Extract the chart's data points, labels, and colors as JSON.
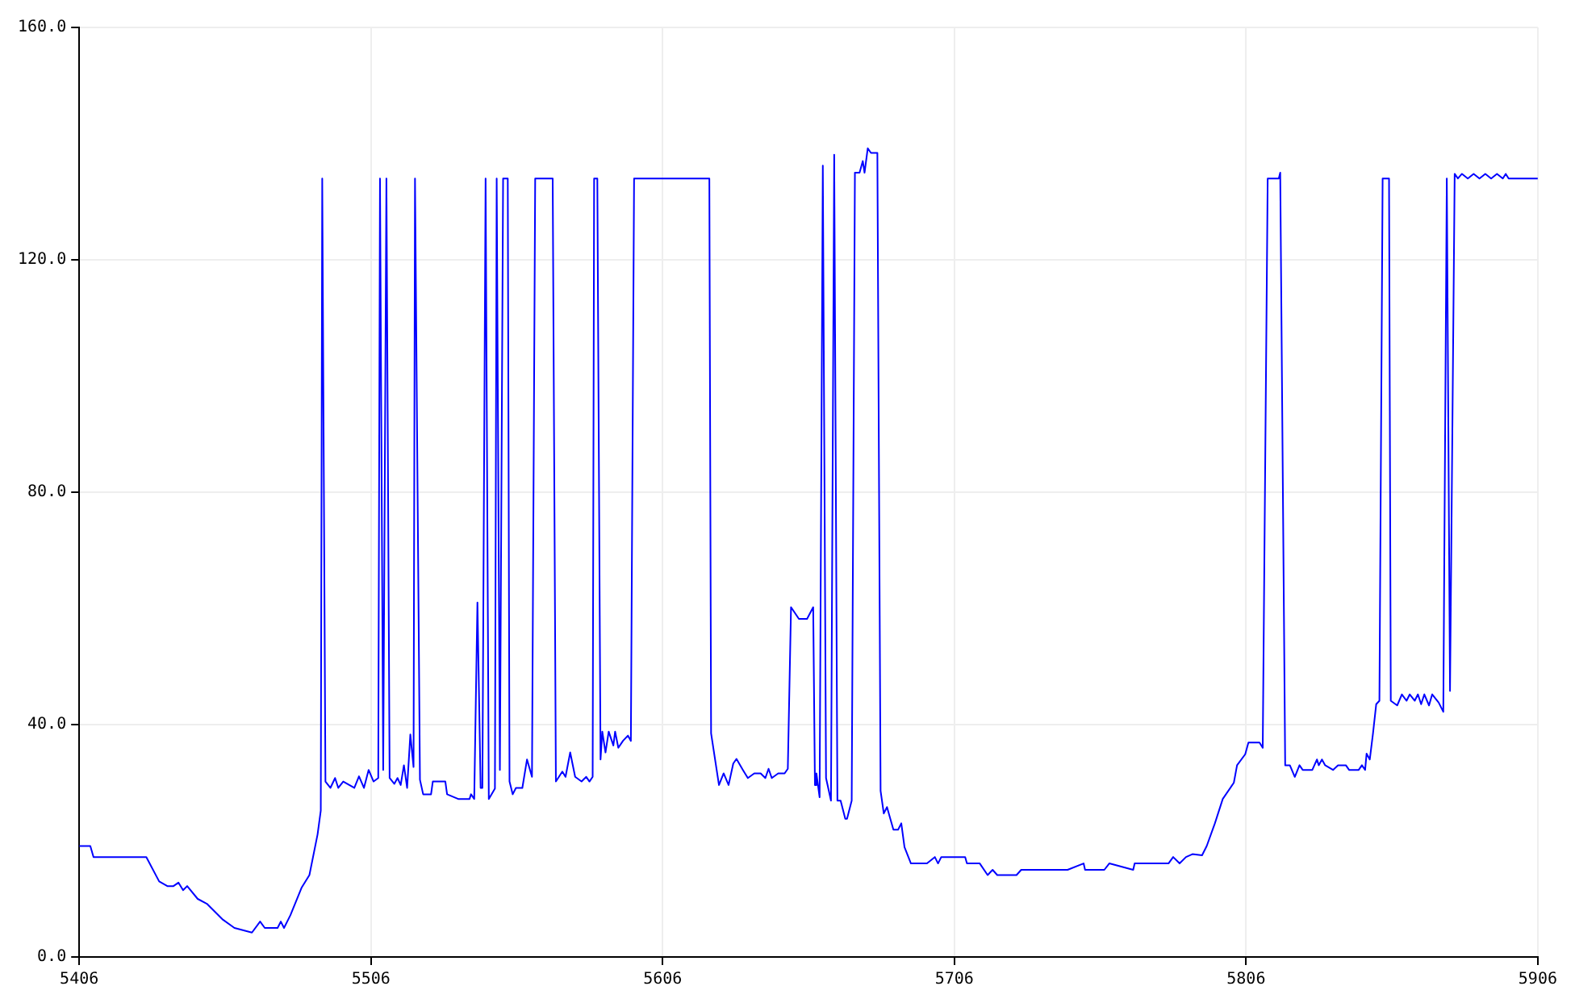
{
  "chart_data": {
    "type": "line",
    "xlim": [
      5406,
      5906
    ],
    "xticks": [
      5406,
      5506,
      5606,
      5706,
      5806,
      5906
    ],
    "ylim": [
      0,
      160
    ],
    "yticks": [
      {
        "value": 0,
        "label": "0.0"
      },
      {
        "value": 40,
        "label": "40.0"
      },
      {
        "value": 80,
        "label": "80.0"
      },
      {
        "value": 120,
        "label": "120.0"
      },
      {
        "value": 160,
        "label": "160.0"
      }
    ],
    "grid": true,
    "marker": "none",
    "line_style": "solid",
    "series": [
      {
        "color": "#0000ff",
        "x": [
          5406,
          5409.8,
          5410.9,
          5429.0,
          5433.4,
          5436.2,
          5438.3,
          5440.0,
          5441.6,
          5443.0,
          5446.6,
          5449.9,
          5455.3,
          5459.2,
          5465.2,
          5468.0,
          5469.6,
          5474.0,
          5475.1,
          5476.2,
          5478.4,
          5482.2,
          5484.9,
          5487.7,
          5488.8,
          5489.3,
          5490.4,
          5492.1,
          5493.7,
          5494.8,
          5496.5,
          5500.3,
          5501.9,
          5503.6,
          5505.2,
          5506.9,
          5508.5,
          5509.1,
          5510.2,
          5511.3,
          5512.4,
          5514.0,
          5515.1,
          5516.2,
          5517.3,
          5518.4,
          5519.5,
          5520.6,
          5521.1,
          5522.8,
          5523.9,
          5526.6,
          5527.2,
          5531.5,
          5532.1,
          5535.9,
          5539.8,
          5540.3,
          5541.4,
          5542.5,
          5543.6,
          5544.2,
          5545.3,
          5546.4,
          5548.5,
          5549.1,
          5550.2,
          5551.3,
          5552.9,
          5553.5,
          5554.6,
          5555.7,
          5557.9,
          5559.5,
          5561.2,
          5562.3,
          5568.3,
          5569.4,
          5571.6,
          5572.7,
          5574.3,
          5576.0,
          5578.2,
          5579.8,
          5580.9,
          5582.0,
          5582.5,
          5583.6,
          5584.7,
          5585.3,
          5586.4,
          5587.5,
          5589.1,
          5589.7,
          5590.8,
          5592.4,
          5594.1,
          5595.1,
          5596.2,
          5622.0,
          5622.6,
          5625.3,
          5626.9,
          5628.6,
          5630.2,
          5631.3,
          5633.5,
          5635.2,
          5637.4,
          5639.6,
          5641.2,
          5642.3,
          5643.4,
          5645.6,
          5647.8,
          5648.9,
          5650.0,
          5652.7,
          5655.5,
          5657.6,
          5658.2,
          5658.7,
          5659.8,
          5660.9,
          5662.0,
          5663.7,
          5664.8,
          5665.9,
          5667.0,
          5668.6,
          5669.2,
          5670.8,
          5671.9,
          5673.5,
          5674.6,
          5675.2,
          5676.3,
          5677.4,
          5679.6,
          5680.7,
          5681.8,
          5682.9,
          5685.1,
          5686.7,
          5687.8,
          5688.9,
          5691.1,
          5696.6,
          5699.3,
          5700.4,
          5701.5,
          5709.7,
          5710.3,
          5714.7,
          5717.4,
          5719.1,
          5720.7,
          5727.3,
          5728.9,
          5736.0,
          5744.8,
          5750.3,
          5750.8,
          5757.4,
          5759.1,
          5767.3,
          5767.8,
          5779.4,
          5781.0,
          5783.2,
          5785.4,
          5787.6,
          5790.9,
          5792.5,
          5795.3,
          5798.0,
          5801.8,
          5802.9,
          5805.7,
          5806.8,
          5810.6,
          5811.7,
          5813.4,
          5817.2,
          5817.7,
          5819.4,
          5821.0,
          5822.7,
          5824.3,
          5825.4,
          5828.7,
          5830.3,
          5830.9,
          5832.0,
          5833.1,
          5835.8,
          5837.5,
          5840.2,
          5841.3,
          5844.6,
          5845.7,
          5846.8,
          5847.3,
          5848.4,
          5849.5,
          5850.6,
          5851.7,
          5852.8,
          5855.0,
          5855.6,
          5857.8,
          5859.4,
          5861.0,
          5862.1,
          5863.8,
          5864.9,
          5866.0,
          5867.1,
          5868.7,
          5869.8,
          5872.0,
          5873.6,
          5874.8,
          5875.9,
          5877.5,
          5878.6,
          5880,
          5882,
          5884,
          5886,
          5888,
          5890,
          5892,
          5894,
          5895,
          5896,
          5906
        ],
        "values": [
          19.1,
          19.1,
          17.2,
          17.2,
          13.0,
          12.2,
          12.2,
          12.8,
          11.5,
          12.2,
          10.0,
          9.1,
          6.4,
          5.0,
          4.2,
          6.1,
          5.0,
          5.0,
          6.1,
          5.0,
          7.2,
          11.9,
          14.1,
          21.1,
          25.2,
          134,
          30.2,
          29.1,
          30.8,
          29.1,
          30.2,
          29.1,
          31.1,
          29.1,
          32.2,
          30.2,
          30.8,
          134,
          32.2,
          134,
          30.8,
          29.8,
          30.8,
          29.6,
          33.0,
          29.1,
          38.3,
          32.7,
          134,
          30.5,
          28.0,
          28.0,
          30.2,
          30.2,
          28.0,
          27.2,
          27.2,
          28.0,
          27.2,
          61,
          29.1,
          29.1,
          134,
          27.2,
          29.0,
          134,
          32.2,
          134,
          134,
          30.2,
          28.0,
          29.1,
          29.1,
          34.0,
          31.0,
          134,
          134,
          30.2,
          31.9,
          31.0,
          35.2,
          31.0,
          30.2,
          31.0,
          30.2,
          31.0,
          134,
          134,
          34.0,
          38.8,
          35.2,
          38.8,
          36.4,
          38.8,
          36.0,
          37.2,
          38.1,
          37.2,
          134,
          134,
          38.5,
          29.6,
          31.6,
          29.6,
          33.3,
          34.1,
          32.2,
          30.8,
          31.6,
          31.6,
          30.8,
          32.4,
          30.8,
          31.6,
          31.6,
          32.4,
          60.2,
          58.2,
          58.2,
          60.2,
          29.6,
          31.6,
          27.5,
          136.2,
          30.8,
          26.9,
          138.1,
          26.9,
          26.9,
          23.8,
          23.8,
          26.9,
          135,
          135,
          137,
          135,
          139.2,
          138.4,
          138.4,
          28.6,
          24.7,
          25.8,
          21.9,
          21.9,
          23.0,
          18.9,
          16.1,
          16.1,
          17.2,
          16.1,
          17.2,
          17.2,
          16.1,
          16.1,
          14.1,
          15.0,
          14.1,
          14.1,
          15.0,
          15.0,
          15.0,
          16.1,
          15.0,
          15.0,
          16.1,
          15.0,
          16.1,
          16.1,
          17.2,
          16.1,
          17.2,
          17.7,
          17.5,
          19.1,
          23.0,
          27.2,
          30.0,
          33.0,
          34.9,
          36.9,
          36.9,
          36.0,
          134,
          134,
          135,
          33.0,
          33.0,
          31.0,
          33.0,
          32.2,
          32.2,
          34.0,
          33.0,
          34.0,
          33.0,
          32.2,
          33.0,
          33.0,
          32.2,
          32.2,
          33.0,
          32.2,
          35.0,
          34.0,
          38.5,
          43.5,
          44.1,
          134,
          134,
          44.1,
          43.3,
          45.2,
          44.1,
          45.2,
          44.1,
          45.2,
          43.5,
          45.2,
          43.3,
          45.2,
          43.8,
          42.2,
          134,
          45.8,
          134.8,
          134,
          134.8,
          134,
          134.8,
          134,
          134.8,
          134,
          134.8,
          134,
          134.8,
          134,
          134
        ]
      }
    ]
  }
}
